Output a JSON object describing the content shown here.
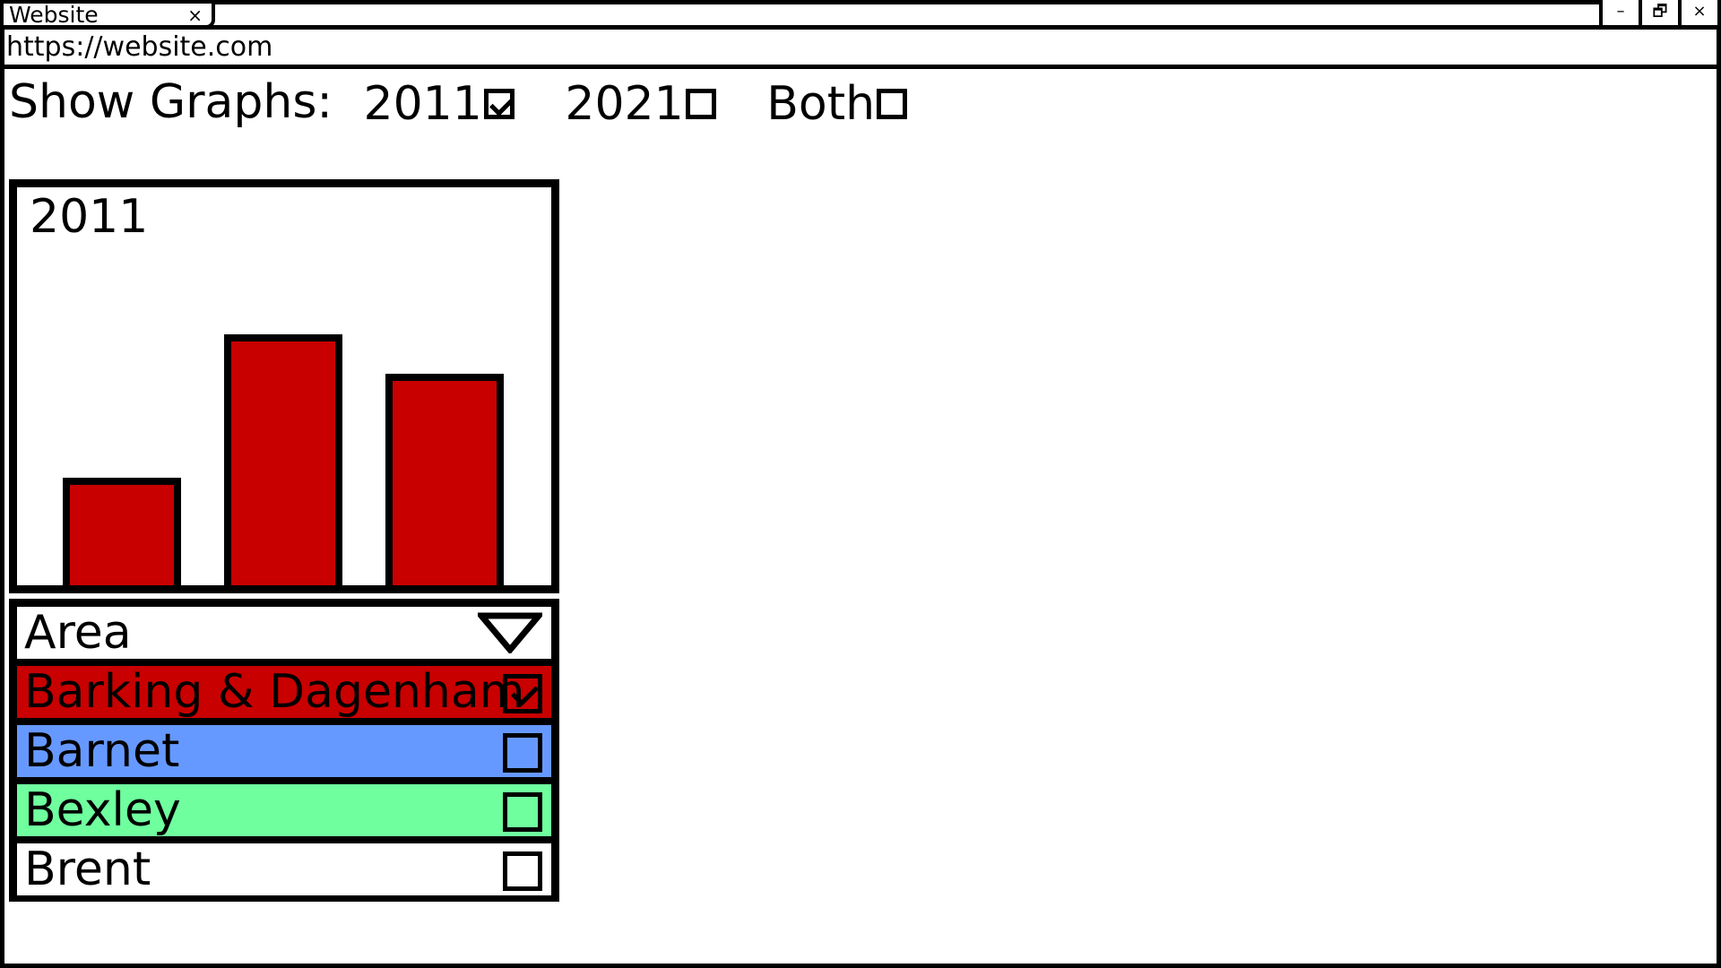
{
  "window": {
    "tab_title": "Website",
    "tab_close": "×",
    "minimize": "–",
    "restore": "🗗",
    "close": "×"
  },
  "address_bar": {
    "url": "https://website.com"
  },
  "show_graphs": {
    "label": "Show Graphs:",
    "options": [
      {
        "label": "2011",
        "checked": true
      },
      {
        "label": "2021",
        "checked": false
      },
      {
        "label": "Both",
        "checked": false
      }
    ]
  },
  "chart_data": {
    "type": "bar",
    "title": "2011",
    "bar_color": "#c80000",
    "values": [
      0.3,
      0.7,
      0.59
    ]
  },
  "area_list": {
    "header": "Area",
    "items": [
      {
        "label": "Barking & Dagenham",
        "color": "#c80000",
        "checked": true
      },
      {
        "label": "Barnet",
        "color": "#6699ff",
        "checked": false
      },
      {
        "label": "Bexley",
        "color": "#6fff9f",
        "checked": false
      },
      {
        "label": "Brent",
        "color": "#ffffff",
        "checked": false
      }
    ]
  }
}
